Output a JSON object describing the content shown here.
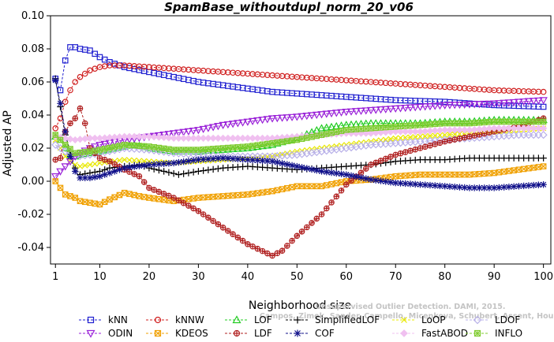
{
  "watermark": {
    "line1": "Unsupervised Outlier Detection. DAMI, 2015.",
    "line2": "Campos, Zimek, Sander, Campello, Micenkova, Schubert, Assent, Houle"
  },
  "chart_data": {
    "type": "line",
    "title": "SpamBase_withoutdupl_norm_20_v06",
    "xlabel": "Neighborhood size",
    "ylabel": "Adjusted AP",
    "xlim": [
      1,
      100
    ],
    "ylim": [
      -0.05,
      0.1
    ],
    "xticks": [
      1,
      10,
      20,
      30,
      40,
      50,
      60,
      70,
      80,
      90,
      100
    ],
    "yticks": [
      -0.04,
      -0.02,
      0.0,
      0.02,
      0.04,
      0.06,
      0.08,
      0.1
    ],
    "ytick_labels": [
      "-0.04",
      "-0.02",
      "0.00",
      "0.02",
      "0.04",
      "0.06",
      "0.08",
      "0.10"
    ],
    "grid": false,
    "legend_position": "bottom",
    "series": [
      {
        "name": "kNN",
        "color": "#1f1fd0",
        "marker": "square",
        "points": [
          [
            1,
            0.062
          ],
          [
            2,
            0.055
          ],
          [
            3,
            0.073
          ],
          [
            4,
            0.081
          ],
          [
            5,
            0.081
          ],
          [
            6,
            0.08
          ],
          [
            8,
            0.079
          ],
          [
            10,
            0.075
          ],
          [
            12,
            0.072
          ],
          [
            15,
            0.069
          ],
          [
            20,
            0.066
          ],
          [
            25,
            0.063
          ],
          [
            30,
            0.06
          ],
          [
            35,
            0.058
          ],
          [
            40,
            0.056
          ],
          [
            45,
            0.054
          ],
          [
            50,
            0.053
          ],
          [
            60,
            0.051
          ],
          [
            70,
            0.049
          ],
          [
            80,
            0.048
          ],
          [
            90,
            0.046
          ],
          [
            100,
            0.045
          ]
        ]
      },
      {
        "name": "kNNW",
        "color": "#d02020",
        "marker": "circle",
        "points": [
          [
            1,
            0.032
          ],
          [
            2,
            0.038
          ],
          [
            3,
            0.048
          ],
          [
            4,
            0.055
          ],
          [
            5,
            0.06
          ],
          [
            6,
            0.063
          ],
          [
            8,
            0.067
          ],
          [
            10,
            0.069
          ],
          [
            12,
            0.07
          ],
          [
            15,
            0.07
          ],
          [
            20,
            0.069
          ],
          [
            30,
            0.067
          ],
          [
            40,
            0.065
          ],
          [
            50,
            0.063
          ],
          [
            60,
            0.061
          ],
          [
            70,
            0.059
          ],
          [
            80,
            0.057
          ],
          [
            90,
            0.055
          ],
          [
            100,
            0.054
          ]
        ]
      },
      {
        "name": "LOF",
        "color": "#22cc22",
        "marker": "triangle",
        "points": [
          [
            1,
            0.027
          ],
          [
            2,
            0.025
          ],
          [
            3,
            0.02
          ],
          [
            4,
            0.016
          ],
          [
            5,
            0.015
          ],
          [
            6,
            0.016
          ],
          [
            8,
            0.017
          ],
          [
            10,
            0.018
          ],
          [
            15,
            0.021
          ],
          [
            17,
            0.022
          ],
          [
            20,
            0.02
          ],
          [
            25,
            0.018
          ],
          [
            30,
            0.018
          ],
          [
            35,
            0.019
          ],
          [
            40,
            0.02
          ],
          [
            45,
            0.022
          ],
          [
            50,
            0.026
          ],
          [
            55,
            0.032
          ],
          [
            60,
            0.034
          ],
          [
            65,
            0.035
          ],
          [
            70,
            0.035
          ],
          [
            75,
            0.035
          ],
          [
            80,
            0.036
          ],
          [
            85,
            0.036
          ],
          [
            90,
            0.037
          ],
          [
            95,
            0.037
          ],
          [
            100,
            0.037
          ]
        ]
      },
      {
        "name": "SimplifiedLOF",
        "color": "#000000",
        "marker": "plus",
        "points": [
          [
            1,
            0.062
          ],
          [
            2,
            0.045
          ],
          [
            3,
            0.028
          ],
          [
            4,
            0.018
          ],
          [
            5,
            0.008
          ],
          [
            6,
            0.004
          ],
          [
            8,
            0.005
          ],
          [
            10,
            0.006
          ],
          [
            12,
            0.008
          ],
          [
            15,
            0.009
          ],
          [
            18,
            0.01
          ],
          [
            20,
            0.008
          ],
          [
            23,
            0.006
          ],
          [
            26,
            0.004
          ],
          [
            30,
            0.006
          ],
          [
            35,
            0.008
          ],
          [
            40,
            0.009
          ],
          [
            45,
            0.008
          ],
          [
            50,
            0.007
          ],
          [
            55,
            0.008
          ],
          [
            60,
            0.009
          ],
          [
            65,
            0.01
          ],
          [
            70,
            0.012
          ],
          [
            75,
            0.013
          ],
          [
            80,
            0.013
          ],
          [
            85,
            0.014
          ],
          [
            90,
            0.014
          ],
          [
            95,
            0.014
          ],
          [
            100,
            0.014
          ]
        ]
      },
      {
        "name": "LoOP",
        "color": "#e8e800",
        "marker": "x",
        "points": [
          [
            1,
            0.025
          ],
          [
            2,
            0.02
          ],
          [
            3,
            0.015
          ],
          [
            4,
            0.012
          ],
          [
            5,
            0.01
          ],
          [
            6,
            0.009
          ],
          [
            8,
            0.01
          ],
          [
            10,
            0.011
          ],
          [
            15,
            0.013
          ],
          [
            20,
            0.012
          ],
          [
            25,
            0.011
          ],
          [
            30,
            0.012
          ],
          [
            35,
            0.013
          ],
          [
            40,
            0.014
          ],
          [
            45,
            0.015
          ],
          [
            50,
            0.018
          ],
          [
            55,
            0.02
          ],
          [
            60,
            0.022
          ],
          [
            65,
            0.024
          ],
          [
            70,
            0.026
          ],
          [
            75,
            0.027
          ],
          [
            80,
            0.028
          ],
          [
            85,
            0.029
          ],
          [
            90,
            0.03
          ],
          [
            95,
            0.031
          ],
          [
            100,
            0.032
          ]
        ]
      },
      {
        "name": "LDOF",
        "color": "#b8b0e8",
        "marker": "diamond",
        "points": [
          [
            1,
            0.022
          ],
          [
            3,
            0.018
          ],
          [
            5,
            0.015
          ],
          [
            8,
            0.016
          ],
          [
            10,
            0.017
          ],
          [
            15,
            0.02
          ],
          [
            20,
            0.019
          ],
          [
            25,
            0.017
          ],
          [
            30,
            0.016
          ],
          [
            35,
            0.015
          ],
          [
            40,
            0.015
          ],
          [
            45,
            0.015
          ],
          [
            50,
            0.016
          ],
          [
            55,
            0.018
          ],
          [
            60,
            0.02
          ],
          [
            65,
            0.022
          ],
          [
            70,
            0.023
          ],
          [
            75,
            0.024
          ],
          [
            80,
            0.025
          ],
          [
            85,
            0.026
          ],
          [
            90,
            0.027
          ],
          [
            95,
            0.028
          ],
          [
            100,
            0.028
          ]
        ]
      },
      {
        "name": "ODIN",
        "color": "#9a22d8",
        "marker": "triangle-down",
        "points": [
          [
            1,
            0.003
          ],
          [
            2,
            0.006
          ],
          [
            3,
            0.009
          ],
          [
            4,
            0.012
          ],
          [
            5,
            0.015
          ],
          [
            6,
            0.017
          ],
          [
            8,
            0.02
          ],
          [
            10,
            0.022
          ],
          [
            15,
            0.025
          ],
          [
            20,
            0.027
          ],
          [
            25,
            0.029
          ],
          [
            30,
            0.031
          ],
          [
            35,
            0.034
          ],
          [
            40,
            0.036
          ],
          [
            45,
            0.038
          ],
          [
            50,
            0.039
          ],
          [
            60,
            0.042
          ],
          [
            70,
            0.044
          ],
          [
            80,
            0.046
          ],
          [
            90,
            0.047
          ],
          [
            100,
            0.049
          ]
        ]
      },
      {
        "name": "KDEOS",
        "color": "#f0a000",
        "marker": "square-x",
        "points": [
          [
            1,
            0.0
          ],
          [
            3,
            -0.008
          ],
          [
            5,
            -0.01
          ],
          [
            6,
            -0.012
          ],
          [
            8,
            -0.013
          ],
          [
            10,
            -0.014
          ],
          [
            12,
            -0.011
          ],
          [
            15,
            -0.007
          ],
          [
            18,
            -0.009
          ],
          [
            20,
            -0.01
          ],
          [
            25,
            -0.012
          ],
          [
            30,
            -0.01
          ],
          [
            35,
            -0.009
          ],
          [
            40,
            -0.008
          ],
          [
            45,
            -0.006
          ],
          [
            50,
            -0.003
          ],
          [
            55,
            -0.003
          ],
          [
            60,
            0.0
          ],
          [
            65,
            0.001
          ],
          [
            70,
            0.003
          ],
          [
            75,
            0.004
          ],
          [
            80,
            0.004
          ],
          [
            85,
            0.004
          ],
          [
            90,
            0.005
          ],
          [
            95,
            0.007
          ],
          [
            100,
            0.009
          ]
        ]
      },
      {
        "name": "LDF",
        "color": "#b02020",
        "marker": "circle-plus",
        "points": [
          [
            1,
            0.013
          ],
          [
            2,
            0.014
          ],
          [
            3,
            0.03
          ],
          [
            4,
            0.035
          ],
          [
            5,
            0.038
          ],
          [
            6,
            0.044
          ],
          [
            7,
            0.035
          ],
          [
            8,
            0.02
          ],
          [
            10,
            0.014
          ],
          [
            12,
            0.012
          ],
          [
            15,
            0.007
          ],
          [
            18,
            0.003
          ],
          [
            20,
            -0.004
          ],
          [
            25,
            -0.01
          ],
          [
            30,
            -0.018
          ],
          [
            35,
            -0.028
          ],
          [
            40,
            -0.038
          ],
          [
            45,
            -0.045
          ],
          [
            47,
            -0.042
          ],
          [
            50,
            -0.033
          ],
          [
            55,
            -0.02
          ],
          [
            60,
            -0.002
          ],
          [
            65,
            0.01
          ],
          [
            70,
            0.016
          ],
          [
            75,
            0.02
          ],
          [
            80,
            0.024
          ],
          [
            85,
            0.027
          ],
          [
            90,
            0.03
          ],
          [
            95,
            0.033
          ],
          [
            100,
            0.038
          ]
        ]
      },
      {
        "name": "COF",
        "color": "#10108a",
        "marker": "asterisk",
        "points": [
          [
            1,
            0.061
          ],
          [
            2,
            0.047
          ],
          [
            3,
            0.03
          ],
          [
            4,
            0.015
          ],
          [
            5,
            0.006
          ],
          [
            6,
            0.002
          ],
          [
            8,
            0.002
          ],
          [
            10,
            0.003
          ],
          [
            12,
            0.005
          ],
          [
            15,
            0.008
          ],
          [
            20,
            0.01
          ],
          [
            25,
            0.011
          ],
          [
            30,
            0.013
          ],
          [
            35,
            0.014
          ],
          [
            40,
            0.013
          ],
          [
            45,
            0.012
          ],
          [
            50,
            0.009
          ],
          [
            55,
            0.006
          ],
          [
            60,
            0.004
          ],
          [
            65,
            0.001
          ],
          [
            70,
            -0.001
          ],
          [
            75,
            -0.002
          ],
          [
            80,
            -0.003
          ],
          [
            85,
            -0.004
          ],
          [
            90,
            -0.004
          ],
          [
            95,
            -0.003
          ],
          [
            100,
            -0.002
          ]
        ]
      },
      {
        "name": "FastABOD",
        "color": "#f0c0f0",
        "marker": "diamond-filled",
        "points": [
          [
            1,
            0.027
          ],
          [
            3,
            0.026
          ],
          [
            5,
            0.025
          ],
          [
            8,
            0.026
          ],
          [
            10,
            0.026
          ],
          [
            15,
            0.027
          ],
          [
            20,
            0.027
          ],
          [
            25,
            0.026
          ],
          [
            30,
            0.026
          ],
          [
            35,
            0.026
          ],
          [
            40,
            0.026
          ],
          [
            45,
            0.026
          ],
          [
            50,
            0.027
          ],
          [
            55,
            0.028
          ],
          [
            60,
            0.029
          ],
          [
            65,
            0.029
          ],
          [
            70,
            0.03
          ],
          [
            75,
            0.03
          ],
          [
            80,
            0.031
          ],
          [
            85,
            0.031
          ],
          [
            90,
            0.032
          ],
          [
            95,
            0.032
          ],
          [
            100,
            0.032
          ]
        ]
      },
      {
        "name": "INFLO",
        "color": "#80cc30",
        "marker": "square-star",
        "points": [
          [
            1,
            0.028
          ],
          [
            3,
            0.022
          ],
          [
            5,
            0.017
          ],
          [
            8,
            0.018
          ],
          [
            10,
            0.019
          ],
          [
            15,
            0.022
          ],
          [
            20,
            0.021
          ],
          [
            25,
            0.019
          ],
          [
            30,
            0.019
          ],
          [
            35,
            0.02
          ],
          [
            40,
            0.021
          ],
          [
            45,
            0.023
          ],
          [
            50,
            0.025
          ],
          [
            55,
            0.028
          ],
          [
            60,
            0.031
          ],
          [
            65,
            0.032
          ],
          [
            70,
            0.033
          ],
          [
            75,
            0.034
          ],
          [
            80,
            0.035
          ],
          [
            85,
            0.035
          ],
          [
            90,
            0.036
          ],
          [
            95,
            0.036
          ],
          [
            100,
            0.036
          ]
        ]
      }
    ]
  }
}
